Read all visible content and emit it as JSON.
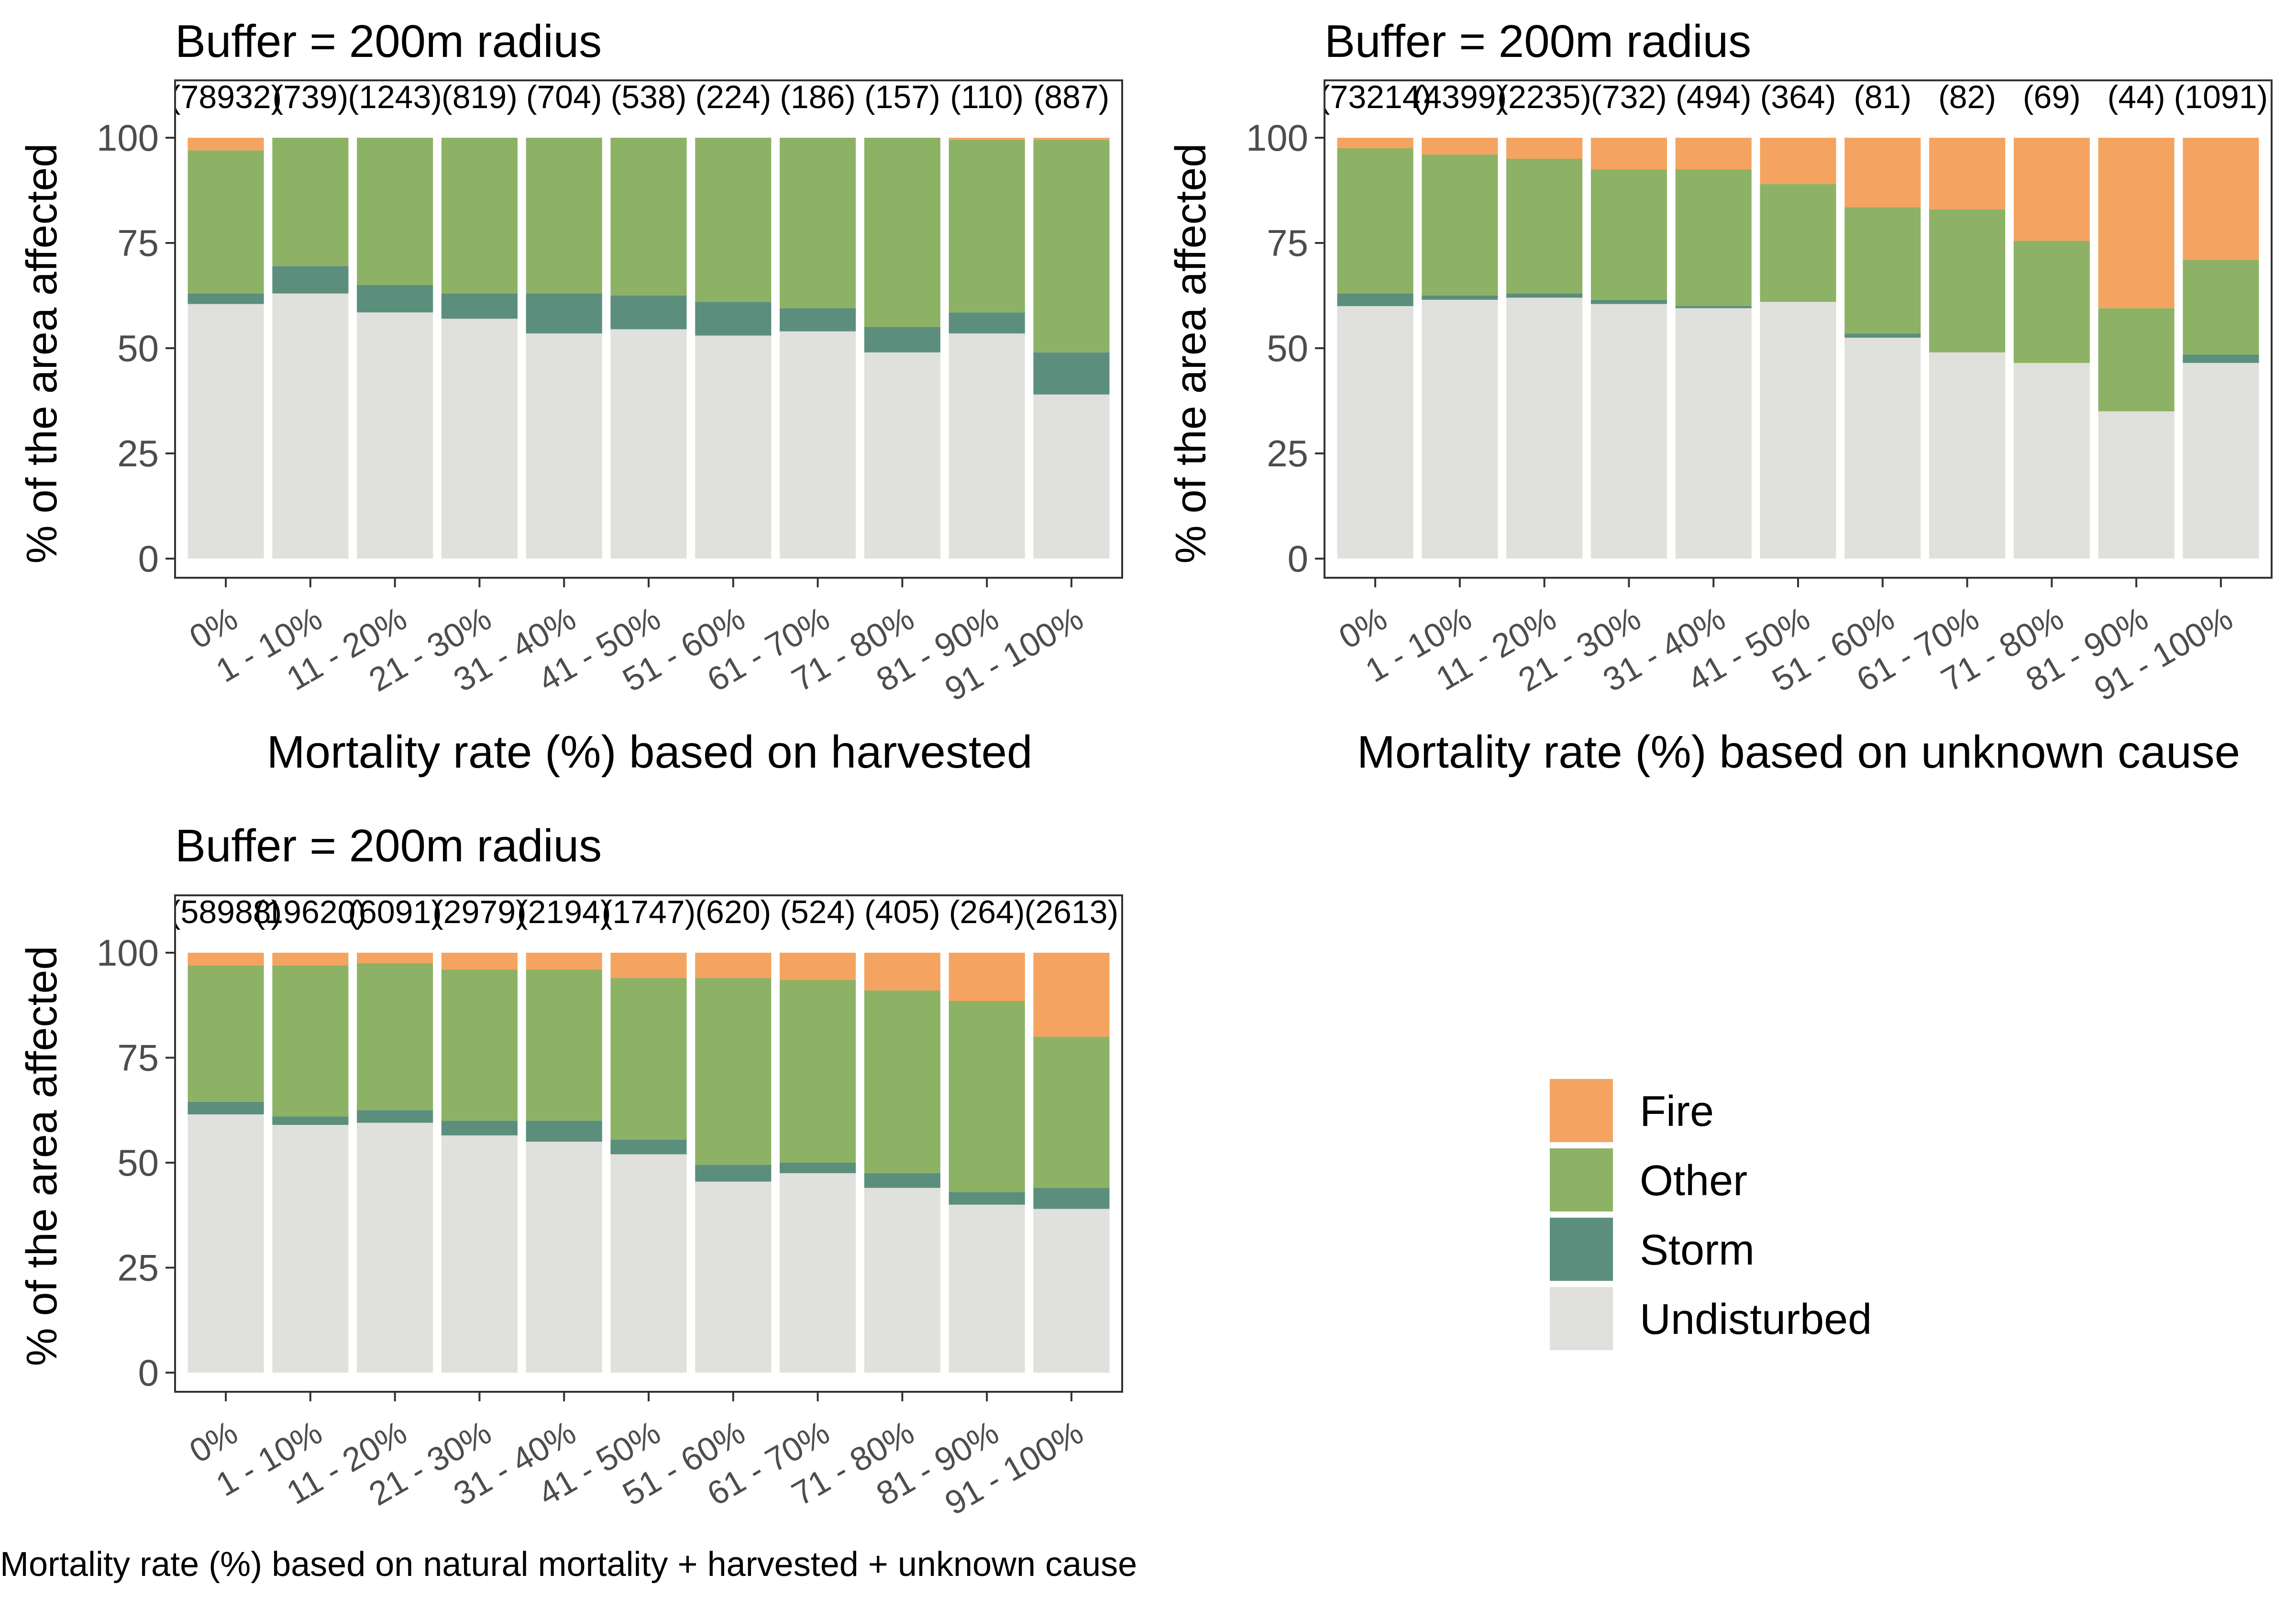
{
  "legend": [
    {
      "name": "Fire",
      "color": "#F4A460"
    },
    {
      "name": "Other",
      "color": "#8DB266"
    },
    {
      "name": "Storm",
      "color": "#5B8E7D"
    },
    {
      "name": "Undisturbed",
      "color": "#E0E0DC"
    }
  ],
  "chart_data": [
    {
      "type": "bar",
      "stacked": true,
      "title": "Buffer = 200m radius",
      "xlabel": "Mortality rate (%) based on harvested",
      "ylabel": "% of the area affected",
      "ylim": [
        0,
        100
      ],
      "yticks": [
        0,
        25,
        50,
        75,
        100
      ],
      "categories": [
        "0%",
        "1 - 10%",
        "11 - 20%",
        "21 - 30%",
        "31 - 40%",
        "41 - 50%",
        "51 - 60%",
        "61 - 70%",
        "71 - 80%",
        "81 - 90%",
        "91 - 100%"
      ],
      "counts": [
        "(78932)",
        "(739)",
        "(1243)",
        "(819)",
        "(704)",
        "(538)",
        "(224)",
        "(186)",
        "(157)",
        "(110)",
        "(887)"
      ],
      "series": [
        {
          "name": "Undisturbed",
          "values": [
            60.5,
            63,
            58.5,
            57,
            53.5,
            54.5,
            53,
            54,
            49,
            53.5,
            39
          ]
        },
        {
          "name": "Storm",
          "values": [
            2.5,
            6.5,
            6.5,
            6,
            9.5,
            8,
            8,
            5.5,
            6,
            5,
            10
          ]
        },
        {
          "name": "Other",
          "values": [
            34,
            30.5,
            35,
            37,
            37,
            37.5,
            39,
            40.5,
            45,
            41,
            50.5
          ]
        },
        {
          "name": "Fire",
          "values": [
            3,
            0,
            0,
            0,
            0,
            0,
            0,
            0,
            0,
            0.5,
            0.5
          ]
        }
      ]
    },
    {
      "type": "bar",
      "stacked": true,
      "title": "Buffer = 200m radius",
      "xlabel": "Mortality rate (%) based on unknown cause",
      "ylabel": "% of the area affected",
      "ylim": [
        0,
        100
      ],
      "yticks": [
        0,
        25,
        50,
        75,
        100
      ],
      "categories": [
        "0%",
        "1 - 10%",
        "11 - 20%",
        "21 - 30%",
        "31 - 40%",
        "41 - 50%",
        "51 - 60%",
        "61 - 70%",
        "71 - 80%",
        "81 - 90%",
        "91 - 100%"
      ],
      "counts": [
        "(73214)",
        "(4399)",
        "(2235)",
        "(732)",
        "(494)",
        "(364)",
        "(81)",
        "(82)",
        "(69)",
        "(44)",
        "(1091)"
      ],
      "series": [
        {
          "name": "Undisturbed",
          "values": [
            60,
            61.5,
            62,
            60.5,
            59.5,
            61,
            52.5,
            49,
            46.5,
            35,
            46.5
          ]
        },
        {
          "name": "Storm",
          "values": [
            3,
            1,
            1,
            1,
            0.5,
            0,
            1,
            0,
            0,
            0,
            2
          ]
        },
        {
          "name": "Other",
          "values": [
            34.5,
            33.5,
            32,
            31,
            32.5,
            28,
            30,
            34,
            29,
            24.5,
            22.5
          ]
        },
        {
          "name": "Fire",
          "values": [
            2.5,
            4,
            5,
            7.5,
            7.5,
            11,
            16.5,
            17,
            24.5,
            40.5,
            29
          ]
        }
      ]
    },
    {
      "type": "bar",
      "stacked": true,
      "title": "Buffer = 200m radius",
      "xlabel": "Mortality rate (%) based on natural mortality + harvested + unknown cause",
      "ylabel": "% of the area affected",
      "ylim": [
        0,
        100
      ],
      "yticks": [
        0,
        25,
        50,
        75,
        100
      ],
      "categories": [
        "0%",
        "1 - 10%",
        "11 - 20%",
        "21 - 30%",
        "31 - 40%",
        "41 - 50%",
        "51 - 60%",
        "61 - 70%",
        "71 - 80%",
        "81 - 90%",
        "91 - 100%"
      ],
      "counts": [
        "(58988)",
        "(19620)",
        "(6091)",
        "(2979)",
        "(2194)",
        "(1747)",
        "(620)",
        "(524)",
        "(405)",
        "(264)",
        "(2613)"
      ],
      "series": [
        {
          "name": "Undisturbed",
          "values": [
            61.5,
            59,
            59.5,
            56.5,
            55,
            52,
            45.5,
            47.5,
            44,
            40,
            39
          ]
        },
        {
          "name": "Storm",
          "values": [
            3,
            2,
            3,
            3.5,
            5,
            3.5,
            4,
            2.5,
            3.5,
            3,
            5
          ]
        },
        {
          "name": "Other",
          "values": [
            32.5,
            36,
            35,
            36,
            36,
            38.5,
            44.5,
            43.5,
            43.5,
            45.5,
            36
          ]
        },
        {
          "name": "Fire",
          "values": [
            3,
            3,
            2.5,
            4,
            4,
            6,
            6,
            6.5,
            9,
            11.5,
            20
          ]
        }
      ]
    }
  ]
}
